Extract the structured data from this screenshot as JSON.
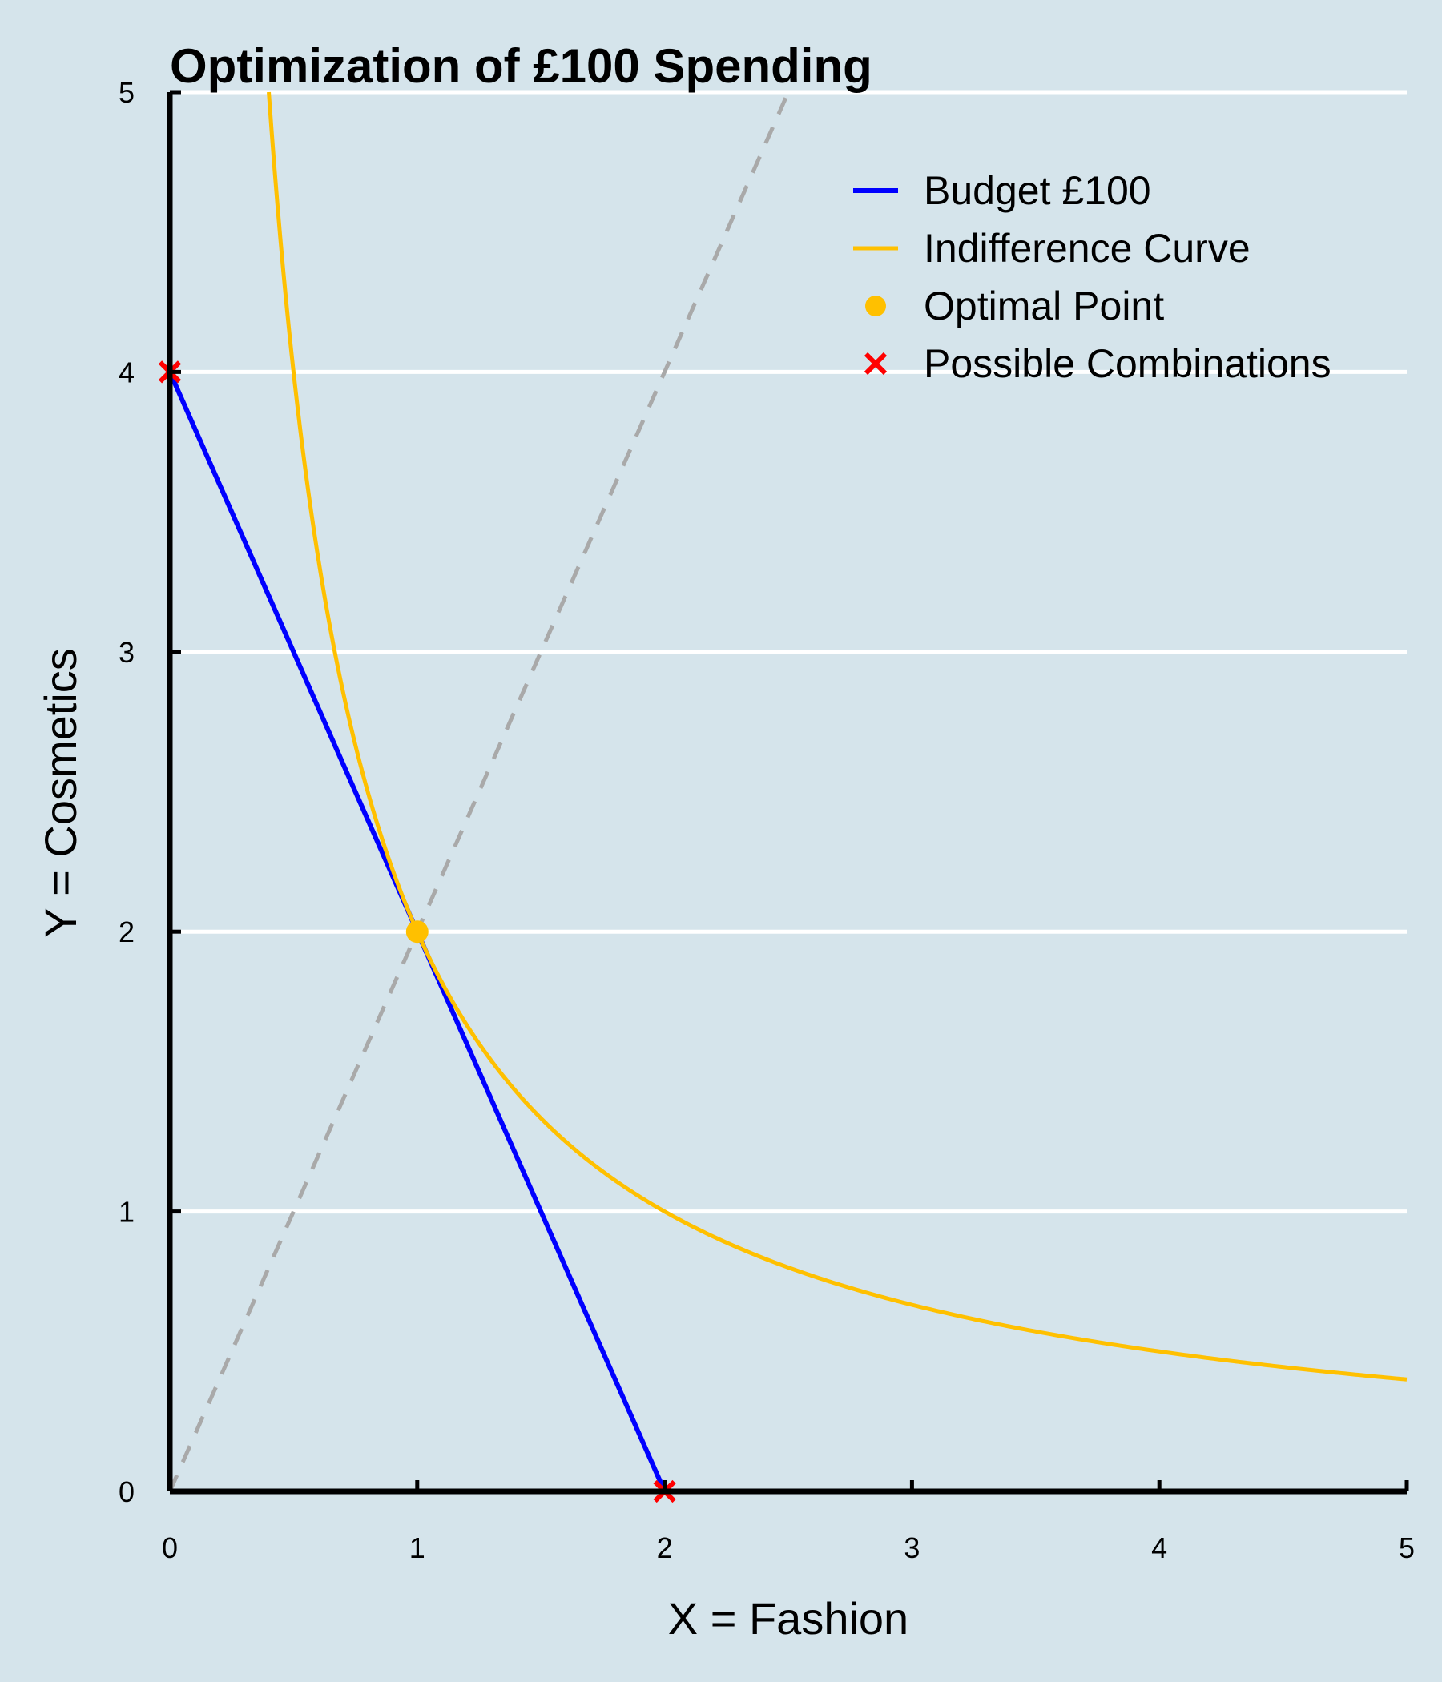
{
  "chart_data": {
    "type": "line",
    "title": "Optimization of £100 Spending",
    "xlabel": "X = Fashion",
    "ylabel": "Y = Cosmetics",
    "xlim": [
      0,
      5
    ],
    "ylim": [
      0,
      5
    ],
    "xticks": [
      "0",
      "1",
      "2",
      "3",
      "4",
      "5"
    ],
    "yticks": [
      "0",
      "1",
      "2",
      "3",
      "4",
      "5"
    ],
    "grid": "horizontal",
    "legend_position": "top-right",
    "series": [
      {
        "name": "Budget £100",
        "kind": "line",
        "color": "#0000ff",
        "points": [
          [
            0,
            4
          ],
          [
            2,
            0
          ]
        ]
      },
      {
        "name": "Indifference Curve",
        "kind": "curve",
        "color": "#ffc000",
        "function": "y = 2 / x",
        "x_range": [
          0.4,
          5
        ]
      },
      {
        "name": "Optimal Point",
        "kind": "scatter",
        "marker": "circle",
        "color": "#ffc000",
        "points": [
          [
            1,
            2
          ]
        ]
      },
      {
        "name": "Possible Combinations",
        "kind": "scatter",
        "marker": "x",
        "color": "#ff0000",
        "points": [
          [
            0,
            4
          ],
          [
            2,
            0
          ]
        ]
      }
    ],
    "reference_lines": [
      {
        "style": "dashed",
        "color": "#a9a9a9",
        "points": [
          [
            0,
            0
          ],
          [
            2.5,
            5
          ]
        ]
      }
    ]
  },
  "colors": {
    "background": "#d5e4eb",
    "grid": "#ffffff",
    "axis": "#000000"
  }
}
